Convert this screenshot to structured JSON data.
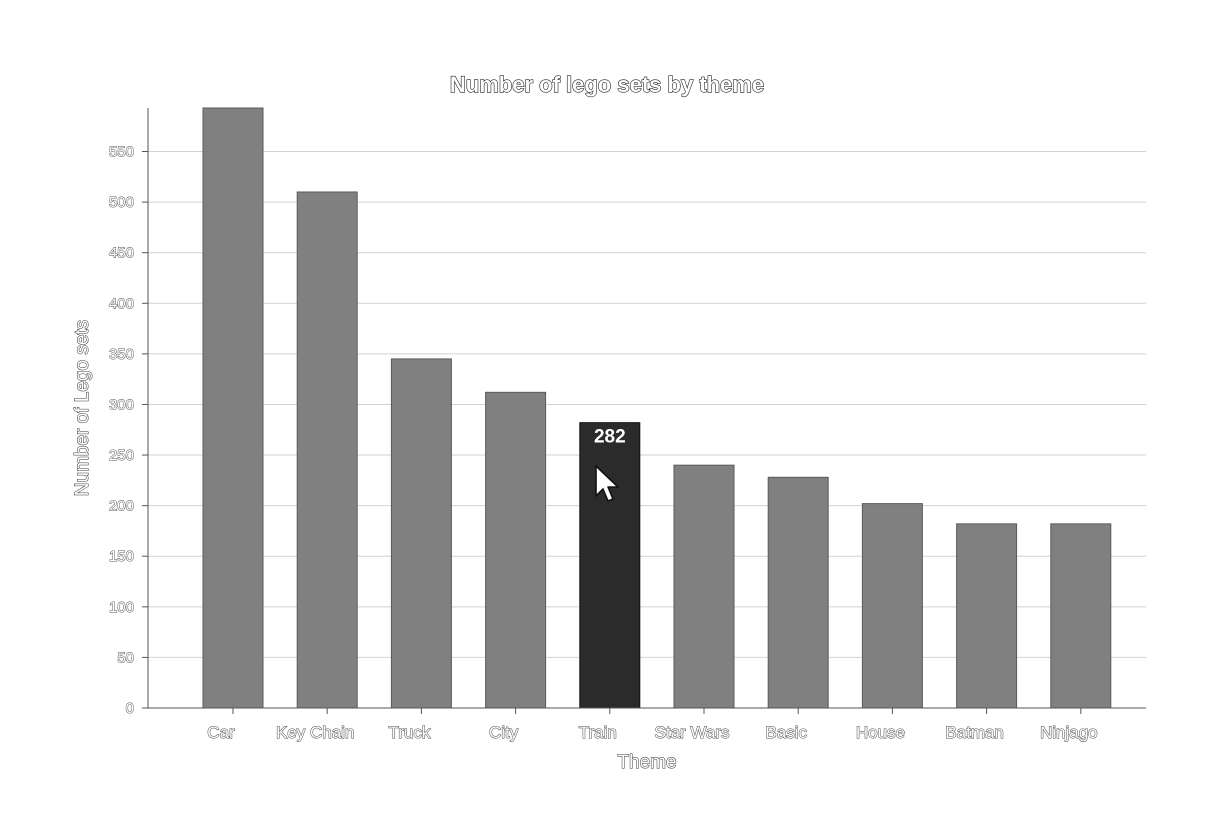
{
  "chart_data": {
    "type": "bar",
    "title": "Number of lego sets by theme",
    "xlabel": "Theme",
    "ylabel": "Number of Lego sets",
    "categories": [
      "Car",
      "Key Chain",
      "Truck",
      "City",
      "Train",
      "Star Wars",
      "Basic",
      "House",
      "Batman",
      "Ninjago"
    ],
    "values": [
      593,
      510,
      345,
      312,
      282,
      240,
      228,
      202,
      182,
      182
    ],
    "ylim": [
      0,
      593
    ],
    "yticks": [
      0,
      50,
      100,
      150,
      200,
      250,
      300,
      350,
      400,
      450,
      500,
      550
    ],
    "grid": true,
    "highlight_index": 4,
    "highlight_label": "282",
    "colors": {
      "bar": "#808080",
      "bar_highlight": "#2b2b2b",
      "grid": "#d2d2d2"
    }
  }
}
